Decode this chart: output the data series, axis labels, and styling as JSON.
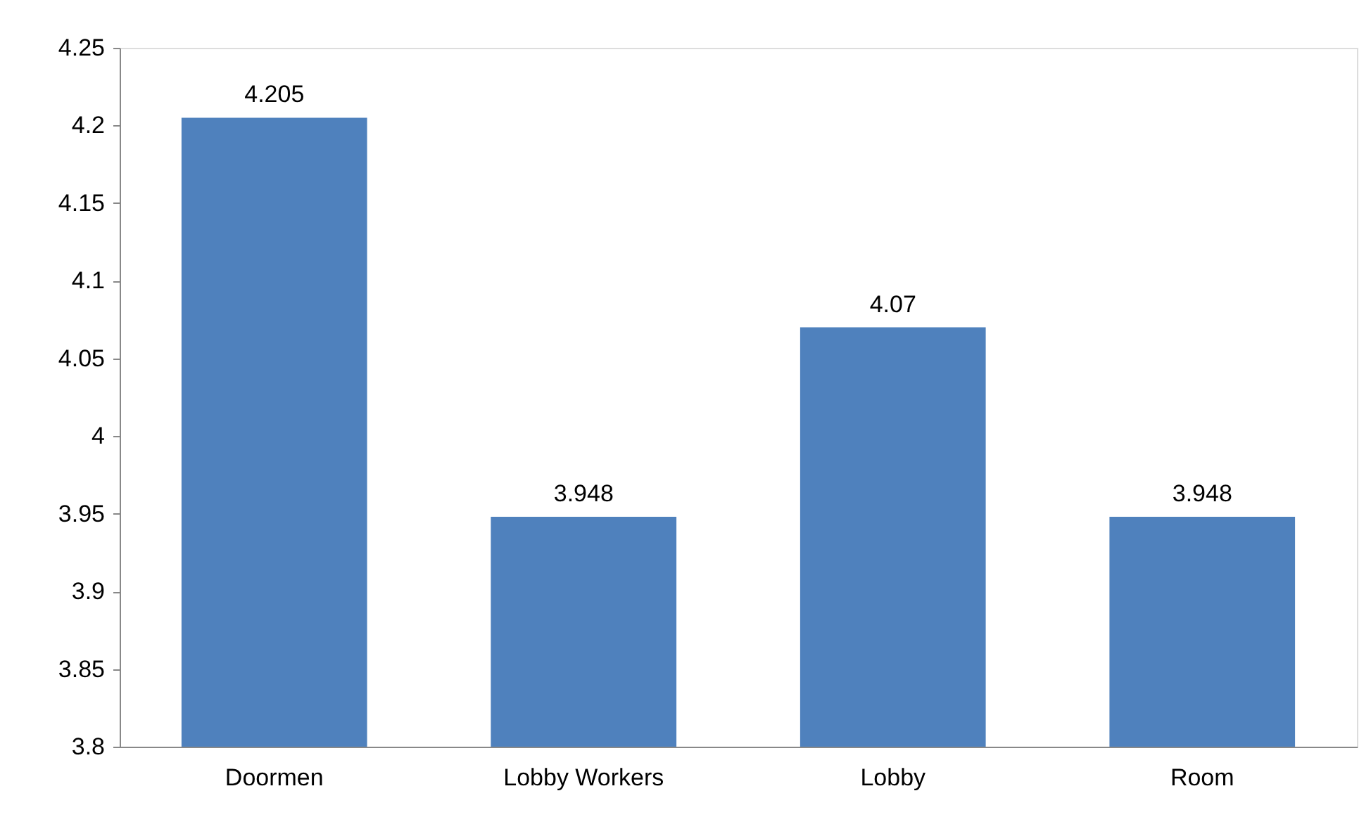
{
  "chart_data": {
    "type": "bar",
    "categories": [
      "Doormen",
      "Lobby Workers",
      "Lobby",
      "Room"
    ],
    "values": [
      4.205,
      3.948,
      4.07,
      3.948
    ],
    "color": "#4f81bd",
    "ylim": [
      3.8,
      4.25
    ],
    "yticks": [
      3.8,
      3.85,
      3.9,
      3.95,
      4,
      4.05,
      4.1,
      4.15,
      4.2,
      4.25
    ],
    "grid": false,
    "data_labels": true
  }
}
